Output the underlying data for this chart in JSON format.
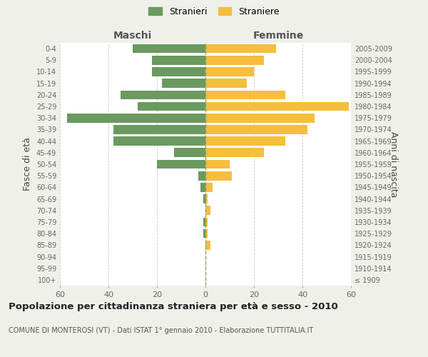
{
  "age_groups": [
    "100+",
    "95-99",
    "90-94",
    "85-89",
    "80-84",
    "75-79",
    "70-74",
    "65-69",
    "60-64",
    "55-59",
    "50-54",
    "45-49",
    "40-44",
    "35-39",
    "30-34",
    "25-29",
    "20-24",
    "15-19",
    "10-14",
    "5-9",
    "0-4"
  ],
  "birth_years": [
    "≤ 1909",
    "1910-1914",
    "1915-1919",
    "1920-1924",
    "1925-1929",
    "1930-1934",
    "1935-1939",
    "1940-1944",
    "1945-1949",
    "1950-1954",
    "1955-1959",
    "1960-1964",
    "1965-1969",
    "1970-1974",
    "1975-1979",
    "1980-1984",
    "1985-1989",
    "1990-1994",
    "1995-1999",
    "2000-2004",
    "2005-2009"
  ],
  "maschi": [
    0,
    0,
    0,
    0,
    1,
    1,
    0,
    1,
    2,
    3,
    20,
    13,
    38,
    38,
    57,
    28,
    35,
    18,
    22,
    22,
    30
  ],
  "femmine": [
    0,
    0,
    0,
    2,
    1,
    1,
    2,
    1,
    3,
    11,
    10,
    24,
    33,
    42,
    45,
    59,
    33,
    17,
    20,
    24,
    29
  ],
  "maschi_color": "#6a9a5f",
  "femmine_color": "#f5be3c",
  "background_color": "#f0f0eb",
  "plot_bg_color": "#ffffff",
  "grid_color": "#cccccc",
  "xlim": 60,
  "title": "Popolazione per cittadinanza straniera per età e sesso - 2010",
  "subtitle": "COMUNE DI MONTEROSI (VT) - Dati ISTAT 1° gennaio 2010 - Elaborazione TUTTITALIA.IT",
  "ylabel_left": "Fasce di età",
  "ylabel_right": "Anni di nascita",
  "maschi_label": "Maschi",
  "femmine_label": "Femmine",
  "legend_stranieri": "Stranieri",
  "legend_straniere": "Straniere"
}
